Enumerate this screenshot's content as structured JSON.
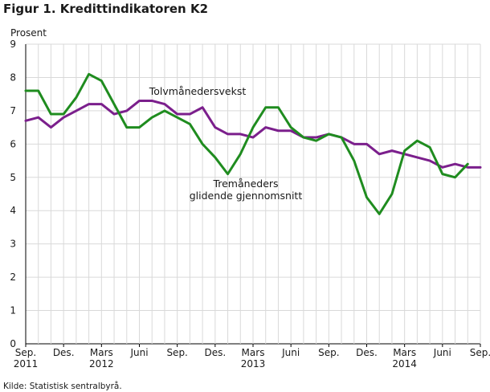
{
  "chart_data": {
    "type": "line",
    "title": "Figur 1. Kredittindikatoren K2",
    "ylabel": "Prosent",
    "ylim": [
      0,
      9
    ],
    "yticks": [
      "0",
      "1",
      "2",
      "3",
      "4",
      "5",
      "6",
      "7",
      "8",
      "9"
    ],
    "grid": true,
    "source": "Kilde: Statistisk sentralbyrå.",
    "x_months": [
      "2011-09",
      "2011-10",
      "2011-11",
      "2011-12",
      "2012-01",
      "2012-02",
      "2012-03",
      "2012-04",
      "2012-05",
      "2012-06",
      "2012-07",
      "2012-08",
      "2012-09",
      "2012-10",
      "2012-11",
      "2012-12",
      "2013-01",
      "2013-02",
      "2013-03",
      "2013-04",
      "2013-05",
      "2013-06",
      "2013-07",
      "2013-08",
      "2013-09",
      "2013-10",
      "2013-11",
      "2013-12",
      "2014-01",
      "2014-02",
      "2014-03",
      "2014-04",
      "2014-05",
      "2014-06",
      "2014-07",
      "2014-08",
      "2014-09"
    ],
    "xtick_labels": [
      {
        "line1": "Sep.",
        "line2": "2011"
      },
      {
        "line1": "Des.",
        "line2": ""
      },
      {
        "line1": "Mars",
        "line2": "2012"
      },
      {
        "line1": "Juni",
        "line2": ""
      },
      {
        "line1": "Sep.",
        "line2": ""
      },
      {
        "line1": "Des.",
        "line2": ""
      },
      {
        "line1": "Mars",
        "line2": "2013"
      },
      {
        "line1": "Juni",
        "line2": ""
      },
      {
        "line1": "Sep.",
        "line2": ""
      },
      {
        "line1": "Des.",
        "line2": ""
      },
      {
        "line1": "Mars",
        "line2": "2014"
      },
      {
        "line1": "Juni",
        "line2": ""
      },
      {
        "line1": "Sep.",
        "line2": ""
      }
    ],
    "series": [
      {
        "name": "Tolvmånedersvekst",
        "color": "#7b1f8c",
        "values": [
          6.7,
          6.8,
          6.5,
          6.8,
          7.0,
          7.2,
          7.2,
          6.9,
          7.0,
          7.3,
          7.3,
          7.2,
          6.9,
          6.9,
          7.1,
          6.5,
          6.3,
          6.3,
          6.2,
          6.5,
          6.4,
          6.4,
          6.2,
          6.2,
          6.3,
          6.2,
          6.0,
          6.0,
          5.7,
          5.8,
          5.7,
          5.6,
          5.5,
          5.3,
          5.4,
          5.3,
          5.3
        ]
      },
      {
        "name": "Tremåneders glidende gjennomsnitt",
        "color": "#1f8c1f",
        "values": [
          7.6,
          7.6,
          6.9,
          6.9,
          7.4,
          8.1,
          7.9,
          7.2,
          6.5,
          6.5,
          6.8,
          7.0,
          6.8,
          6.6,
          6.0,
          5.6,
          5.1,
          5.7,
          6.5,
          7.1,
          7.1,
          6.5,
          6.2,
          6.1,
          6.3,
          6.2,
          5.5,
          4.4,
          3.9,
          4.5,
          5.8,
          6.1,
          5.9,
          5.1,
          5.0,
          5.4,
          null
        ]
      }
    ],
    "annotations": [
      {
        "text_lines": [
          "Tolvmånedersvekst"
        ]
      },
      {
        "text_lines": [
          "Tremåneders",
          "glidende gjennomsnitt"
        ]
      }
    ]
  }
}
